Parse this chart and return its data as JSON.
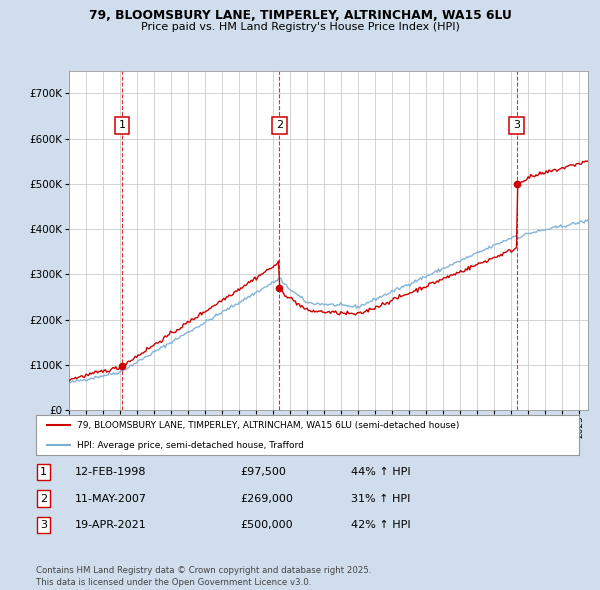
{
  "title_line1": "79, BLOOMSBURY LANE, TIMPERLEY, ALTRINCHAM, WA15 6LU",
  "title_line2": "Price paid vs. HM Land Registry's House Price Index (HPI)",
  "background_color": "#cfdded",
  "plot_bg_color": "#ffffff",
  "ylim": [
    0,
    750000
  ],
  "yticks": [
    0,
    100000,
    200000,
    300000,
    400000,
    500000,
    600000,
    700000
  ],
  "sale_color": "#cc0000",
  "hpi_color": "#7aadd4",
  "sale_label": "79, BLOOMSBURY LANE, TIMPERLEY, ALTRINCHAM, WA15 6LU (semi-detached house)",
  "hpi_label": "HPI: Average price, semi-detached house, Trafford",
  "purchases": [
    {
      "num": 1,
      "date_x": 1998.12,
      "price": 97500,
      "label": "12-FEB-1998",
      "amount": "£97,500",
      "pct": "44% ↑ HPI"
    },
    {
      "num": 2,
      "date_x": 2007.37,
      "price": 269000,
      "label": "11-MAY-2007",
      "amount": "£269,000",
      "pct": "31% ↑ HPI"
    },
    {
      "num": 3,
      "date_x": 2021.3,
      "price": 500000,
      "label": "19-APR-2021",
      "amount": "£500,000",
      "pct": "42% ↑ HPI"
    }
  ],
  "xlim_start": 1995,
  "xlim_end": 2025.5,
  "footer": "Contains HM Land Registry data © Crown copyright and database right 2025.\nThis data is licensed under the Open Government Licence v3.0."
}
